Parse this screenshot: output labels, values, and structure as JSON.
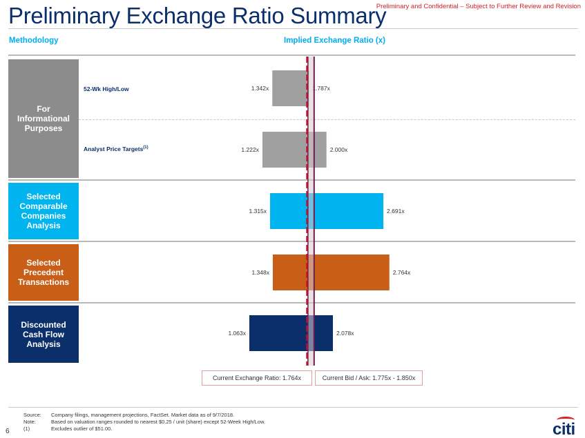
{
  "header": {
    "title": "Preliminary Exchange Ratio Summary",
    "confidential": "Preliminary and Confidential – Subject to Further Review and Revision"
  },
  "columns": {
    "methodology": "Methodology",
    "implied": "Implied Exchange Ratio (x)"
  },
  "categories": [
    {
      "label": "For Informational Purposes",
      "color": "#8c8c8c"
    },
    {
      "label": "Selected Comparable Companies Analysis",
      "color": "#00b5ef"
    },
    {
      "label": "Selected Precedent Transactions",
      "color": "#c95f17"
    },
    {
      "label": "Discounted Cash Flow Analysis",
      "color": "#0b2f6b"
    }
  ],
  "sub_labels": {
    "wk52": "52-Wk High/Low",
    "analyst": "Analyst Price Targets",
    "analyst_sup": "(1)"
  },
  "chart_data": {
    "type": "bar",
    "orientation": "horizontal-range",
    "rows": [
      {
        "name": "52-Wk High/Low",
        "low": 1.342,
        "high": 1.787,
        "low_label": "1.342x",
        "high_label": "1.787x",
        "color": "#a0a0a0"
      },
      {
        "name": "Analyst Price Targets",
        "low": 1.222,
        "high": 2.0,
        "low_label": "1.222x",
        "high_label": "2.000x",
        "color": "#a0a0a0"
      },
      {
        "name": "Selected Comparable Companies Analysis",
        "low": 1.315,
        "high": 2.691,
        "low_label": "1.315x",
        "high_label": "2.691x",
        "color": "#00b5ef"
      },
      {
        "name": "Selected Precedent Transactions",
        "low": 1.348,
        "high": 2.764,
        "low_label": "1.348x",
        "high_label": "2.764x",
        "color": "#c95f17"
      },
      {
        "name": "Discounted Cash Flow Analysis",
        "low": 1.063,
        "high": 2.078,
        "low_label": "1.063x",
        "high_label": "2.078x",
        "color": "#0b2f6b"
      }
    ],
    "reference_lines": [
      {
        "name": "Current Exchange Ratio",
        "value": 1.764,
        "style": "dashed",
        "color": "#c0122f"
      },
      {
        "name": "Current Bid / Ask",
        "low": 1.775,
        "high": 1.85,
        "color": "#6b1f4a"
      }
    ]
  },
  "legend": {
    "current": "Current Exchange Ratio: 1.764x",
    "bidask": "Current Bid / Ask: 1.775x - 1.850x"
  },
  "footer": {
    "source_key": "Source:",
    "source": "Company filings, management projections, FactSet. Market data as of 9/7/2018.",
    "note_key": "Note:",
    "note": "Based on valuation ranges rounded to nearest $0.25 / unit (share) except 52-Week High/Low.",
    "fn_key": "(1)",
    "fn": "Excludes outlier of $51.00.",
    "page": "6",
    "logo": "citi"
  }
}
